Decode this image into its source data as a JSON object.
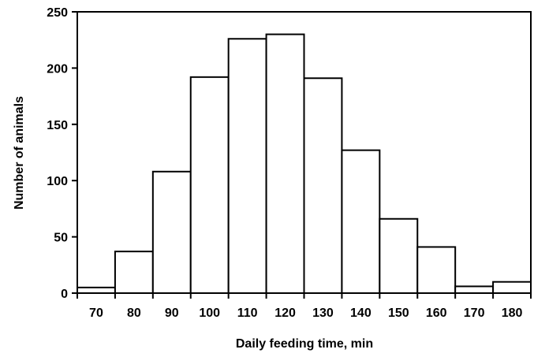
{
  "chart_data": {
    "type": "bar",
    "title": "",
    "xlabel": "Daily feeding time, min",
    "ylabel": "Number of animals",
    "categories": [
      "70",
      "80",
      "90",
      "100",
      "110",
      "120",
      "130",
      "140",
      "150",
      "160",
      "170",
      "180"
    ],
    "values": [
      5,
      37,
      108,
      192,
      226,
      230,
      191,
      127,
      66,
      41,
      6,
      10
    ],
    "ylim": [
      0,
      250
    ],
    "yticks": [
      0,
      50,
      100,
      150,
      200,
      250
    ],
    "grid": false,
    "legend": "none",
    "colors": {
      "bar_fill": "#ffffff",
      "bar_stroke": "#000000",
      "axis": "#000000"
    }
  }
}
